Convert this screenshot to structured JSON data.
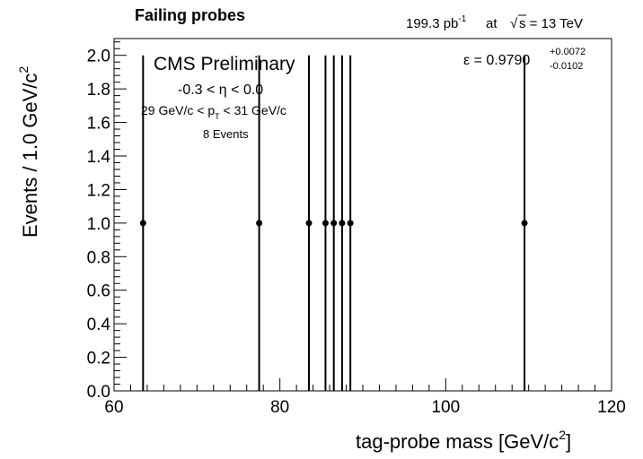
{
  "header": {
    "title": "Failing probes",
    "lumi_value": "199.3 pb",
    "lumi_exp": "-1",
    "at_word": "at",
    "sqrt_symbol": "√",
    "energy": "s = 13 TeV"
  },
  "annotations": {
    "experiment": "CMS Preliminary",
    "eta_range": "-0.3 < η < 0.0",
    "pt_left": "29 GeV/c < p",
    "pt_sub": "T",
    "pt_right": " < 31 GeV/c",
    "events": "8 Events",
    "eff_label": "ε = 0.9790",
    "eff_up": "+0.0072",
    "eff_down": "-0.0102"
  },
  "colors": {
    "axis": "#000000",
    "markers": "#000000",
    "background": "#ffffff"
  },
  "chart_data": {
    "type": "scatter",
    "xlabel": "tag-probe mass [GeV/c",
    "xlabel_sup": "2",
    "xlabel_end": "]",
    "ylabel": "Events / 1.0 GeV/c",
    "ylabel_sup": "2",
    "xlim": [
      60,
      120
    ],
    "ylim": [
      0,
      2.1
    ],
    "x_ticks": [
      60,
      80,
      100,
      120
    ],
    "x_tick_labels": [
      "60",
      "80",
      "100",
      "120"
    ],
    "y_ticks": [
      0,
      0.2,
      0.4,
      0.6,
      0.8,
      1.0,
      1.2,
      1.4,
      1.6,
      1.8,
      2.0
    ],
    "y_tick_labels": [
      "0.0",
      "0.2",
      "0.4",
      "0.6",
      "0.8",
      "1.0",
      "1.2",
      "1.4",
      "1.6",
      "1.8",
      "2.0"
    ],
    "grid": false,
    "points": [
      {
        "x": 63.5,
        "y": 1,
        "yerr_low": 1,
        "yerr_high": 1
      },
      {
        "x": 77.5,
        "y": 1,
        "yerr_low": 1,
        "yerr_high": 1
      },
      {
        "x": 83.5,
        "y": 1,
        "yerr_low": 1,
        "yerr_high": 1
      },
      {
        "x": 85.5,
        "y": 1,
        "yerr_low": 1,
        "yerr_high": 1
      },
      {
        "x": 86.5,
        "y": 1,
        "yerr_low": 1,
        "yerr_high": 1
      },
      {
        "x": 87.5,
        "y": 1,
        "yerr_low": 1,
        "yerr_high": 1
      },
      {
        "x": 88.5,
        "y": 1,
        "yerr_low": 1,
        "yerr_high": 1
      },
      {
        "x": 109.5,
        "y": 1,
        "yerr_low": 1,
        "yerr_high": 1
      }
    ]
  }
}
